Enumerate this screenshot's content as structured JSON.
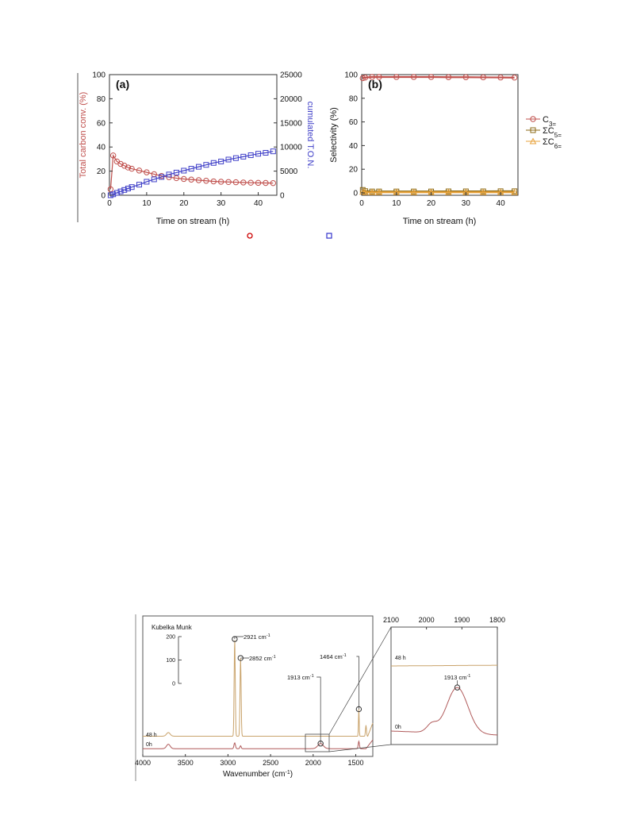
{
  "chart_data": [
    {
      "type": "scatter",
      "panel_label": "(a)",
      "xlabel": "Time on stream (h)",
      "ylabel": "Total carbon conv. (%)",
      "y2label": "cumulated T.O.N.",
      "xlim": [
        0,
        45
      ],
      "ylim": [
        0,
        100
      ],
      "y2lim": [
        0,
        25000
      ],
      "x_ticks": [
        "0",
        "10",
        "20",
        "30",
        "40"
      ],
      "y_ticks": [
        "0",
        "20",
        "40",
        "60",
        "80",
        "100"
      ],
      "y2_ticks": [
        "0",
        "5000",
        "10000",
        "15000",
        "20000",
        "25000"
      ],
      "grid": false,
      "series": [
        {
          "axis": "left",
          "marker": "circle",
          "color": "#c0504d",
          "x": [
            0.3,
            1,
            2,
            3,
            4,
            5,
            6,
            8,
            10,
            12,
            14,
            16,
            18,
            20,
            22,
            24,
            26,
            28,
            30,
            32,
            34,
            36,
            38,
            40,
            42,
            44
          ],
          "values": [
            5,
            33,
            28,
            26,
            24.5,
            23,
            22,
            20.5,
            19,
            17.5,
            16,
            15,
            14.2,
            13.5,
            13,
            12.5,
            12,
            11.5,
            11.2,
            11,
            10.8,
            10.6,
            10.4,
            10.3,
            10.2,
            10.1
          ]
        },
        {
          "axis": "right",
          "marker": "square",
          "color": "#4040c8",
          "x": [
            0.3,
            1,
            2,
            3,
            4,
            5,
            6,
            8,
            10,
            12,
            14,
            16,
            18,
            20,
            22,
            24,
            26,
            28,
            30,
            32,
            34,
            36,
            38,
            40,
            42,
            44
          ],
          "values": [
            0,
            200,
            500,
            800,
            1100,
            1400,
            1700,
            2200,
            2800,
            3300,
            3800,
            4300,
            4700,
            5100,
            5500,
            5900,
            6300,
            6700,
            7000,
            7400,
            7700,
            8000,
            8300,
            8600,
            8800,
            9100
          ]
        }
      ]
    },
    {
      "type": "scatter",
      "panel_label": "(b)",
      "xlabel": "Time on stream (h)",
      "ylabel": "Selectivity (%)",
      "xlim": [
        0,
        45
      ],
      "ylim": [
        0,
        100
      ],
      "x_ticks": [
        "0",
        "10",
        "20",
        "30",
        "40"
      ],
      "y_ticks": [
        "0",
        "20",
        "40",
        "60",
        "80",
        "100"
      ],
      "grid": false,
      "legend_placement": "right",
      "series": [
        {
          "legend": {
            "prefix": "C",
            "sub": "3="
          },
          "marker": "circle",
          "color": "#c0504d",
          "x": [
            0.3,
            1,
            3,
            5,
            10,
            15,
            20,
            25,
            30,
            35,
            40,
            44
          ],
          "values": [
            97,
            97.5,
            98,
            98,
            98,
            98,
            98,
            97.8,
            97.8,
            97.7,
            97.6,
            97.5
          ]
        },
        {
          "legend": {
            "prefix": "ΣC",
            "sub": "5="
          },
          "marker": "square",
          "color": "#8b6914",
          "x": [
            0.3,
            1,
            3,
            5,
            10,
            15,
            20,
            25,
            30,
            35,
            40,
            44
          ],
          "values": [
            2.5,
            1.5,
            1.2,
            1.2,
            1.2,
            1.2,
            1.2,
            1.3,
            1.3,
            1.3,
            1.4,
            1.4
          ]
        },
        {
          "legend": {
            "prefix": "ΣC",
            "sub": "6="
          },
          "marker": "triangle",
          "color": "#e8a33c",
          "x": [
            0.3,
            1,
            3,
            5,
            10,
            15,
            20,
            25,
            30,
            35,
            40,
            44
          ],
          "values": [
            0.8,
            0.6,
            0.5,
            0.5,
            0.5,
            0.5,
            0.5,
            0.5,
            0.5,
            0.5,
            0.5,
            0.5
          ]
        }
      ]
    },
    {
      "type": "line",
      "title": "Kubelka Munk",
      "xlabel": "Wavenumber (cm",
      "xlabel_sup": "-1",
      "xlabel_close": ")",
      "xlim": [
        4000,
        1300
      ],
      "x_ticks": [
        "4000",
        "3500",
        "3000",
        "2500",
        "2000",
        "1500"
      ],
      "scale_ticks": [
        "200",
        "100",
        "0"
      ],
      "annotations": [
        {
          "text": "2921 cm",
          "sup": "-1"
        },
        {
          "text": "2852 cm",
          "sup": "-1"
        },
        {
          "text": "1913 cm",
          "sup": "-1"
        },
        {
          "text": "1464 cm",
          "sup": "-1"
        }
      ],
      "series": [
        {
          "name": "48 h",
          "color": "#c9a36b"
        },
        {
          "name": "0h",
          "color": "#b05a5a"
        }
      ]
    },
    {
      "type": "line",
      "xlim": [
        2100,
        1800
      ],
      "x_ticks": [
        "2100",
        "2000",
        "1900",
        "1800"
      ],
      "annotations": [
        {
          "text": "1913 cm",
          "sup": "-1"
        }
      ],
      "series": [
        {
          "name": "48 h",
          "color": "#c9a36b"
        },
        {
          "name": "0h",
          "color": "#b05a5a"
        }
      ]
    }
  ],
  "colors": {
    "conv": "#c0504d",
    "ton": "#4040c8",
    "c5": "#8b6914",
    "c6": "#e8a33c"
  }
}
